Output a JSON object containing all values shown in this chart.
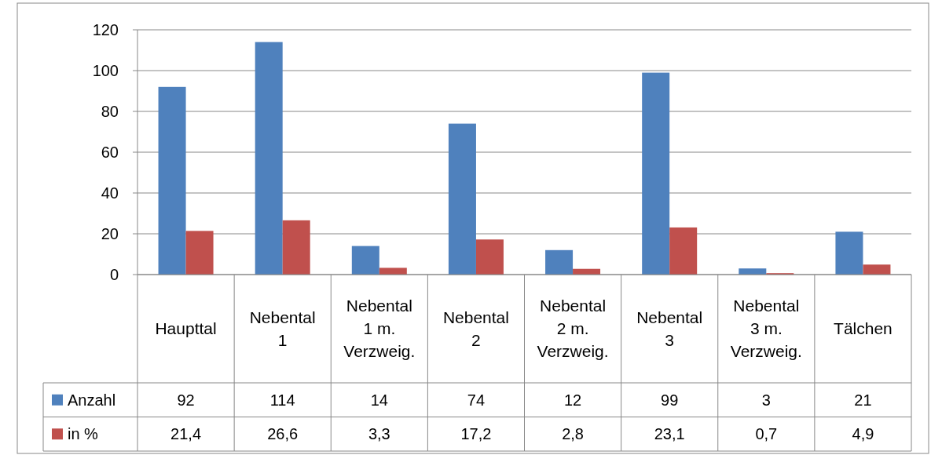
{
  "chart_data": {
    "type": "bar",
    "categories": [
      "Haupttal",
      "Nebental 1",
      "Nebental 1 m. Verzweig.",
      "Nebental 2",
      "Nebental 2 m. Verzweig.",
      "Nebental 3",
      "Nebental 3 m. Verzweig.",
      "Tälchen"
    ],
    "series": [
      {
        "name": "Anzahl",
        "color": "#4f81bd",
        "values": [
          92,
          114,
          14,
          74,
          12,
          99,
          3,
          21
        ],
        "value_labels": [
          "92",
          "114",
          "14",
          "74",
          "12",
          "99",
          "3",
          "21"
        ]
      },
      {
        "name": "in %",
        "color": "#c0504d",
        "values": [
          21.4,
          26.6,
          3.3,
          17.2,
          2.8,
          23.1,
          0.7,
          4.9
        ],
        "value_labels": [
          "21,4",
          "26,6",
          "3,3",
          "17,2",
          "2,8",
          "23,1",
          "0,7",
          "4,9"
        ]
      }
    ],
    "ylim": [
      0,
      120
    ],
    "yticks": [
      0,
      20,
      40,
      60,
      80,
      100,
      120
    ],
    "grid": "y",
    "legend": "bottom left"
  }
}
